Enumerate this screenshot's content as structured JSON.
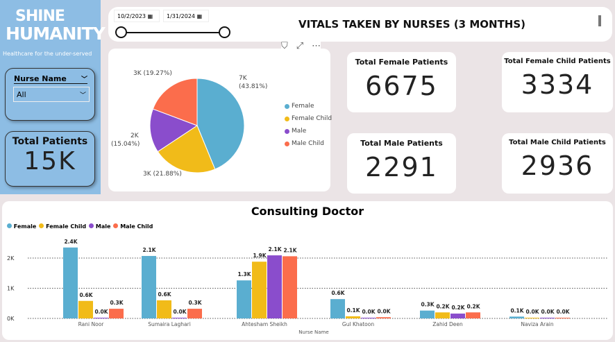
{
  "brand": {
    "line1": "SHINE",
    "line2": "HUMANITY",
    "tagline": "Healthcare for the under-served"
  },
  "slicer": {
    "label": "Nurse Name",
    "value": "All"
  },
  "total_patients": {
    "label": "Total Patients",
    "value": "15K"
  },
  "date_range": {
    "start": "10/2/2023",
    "end": "1/31/2024"
  },
  "title": "VITALS TAKEN BY NURSES (3 MONTHS)",
  "kpis": [
    {
      "label": "Total Female Patients",
      "value": "6675"
    },
    {
      "label": "Total Female Child Patients",
      "value": "3334"
    },
    {
      "label": "Total Male Patients",
      "value": "2291"
    },
    {
      "label": "Total Male Child Patients",
      "value": "2936"
    }
  ],
  "colors": {
    "Female": "#5aaed0",
    "Female Child": "#f1bb19",
    "Male": "#8a4dcc",
    "Male Child": "#fb6d4c"
  },
  "chart_data": [
    {
      "type": "pie",
      "categories": [
        "Female",
        "Female Child",
        "Male",
        "Male Child"
      ],
      "values": [
        43.81,
        21.88,
        15.04,
        19.27
      ],
      "labels": [
        "7K (43.81%)",
        "3K (21.88%)",
        "2K (15.04%)",
        "3K (19.27%)"
      ],
      "legend": "right"
    },
    {
      "type": "bar",
      "title": "Consulting Doctor",
      "xlabel": "Nurse Name",
      "ylabel": "",
      "legend": "top-left",
      "grid": true,
      "categories": [
        "Rani Noor",
        "Sumaira Laghari",
        "Ahtesham Sheikh",
        "Gul Khatoon",
        "Zahid Deen",
        "Naviza Arain"
      ],
      "yticks": [
        "0K",
        "1K",
        "2K"
      ],
      "ylim": [
        0,
        2.6
      ],
      "series": [
        {
          "name": "Female",
          "values": [
            2.35,
            2.07,
            1.26,
            0.64,
            0.26,
            0.06
          ],
          "labels": [
            "2.4K",
            "2.1K",
            "1.3K",
            "0.6K",
            "0.3K",
            "0.1K"
          ]
        },
        {
          "name": "Female Child",
          "values": [
            0.58,
            0.6,
            1.88,
            0.07,
            0.2,
            0.01
          ],
          "labels": [
            "0.6K",
            "0.6K",
            "1.9K",
            "0.1K",
            "0.2K",
            "0.0K"
          ]
        },
        {
          "name": "Male",
          "values": [
            0.01,
            0.01,
            2.09,
            0.01,
            0.16,
            0.0
          ],
          "labels": [
            "0.0K",
            "0.0K",
            "2.1K",
            "0.0K",
            "0.2K",
            "0.0K"
          ]
        },
        {
          "name": "Male Child",
          "values": [
            0.32,
            0.32,
            2.06,
            0.04,
            0.2,
            0.02
          ],
          "labels": [
            "0.3K",
            "0.3K",
            "2.1K",
            "0.0K",
            "0.2K",
            "0.0K"
          ]
        }
      ]
    }
  ]
}
